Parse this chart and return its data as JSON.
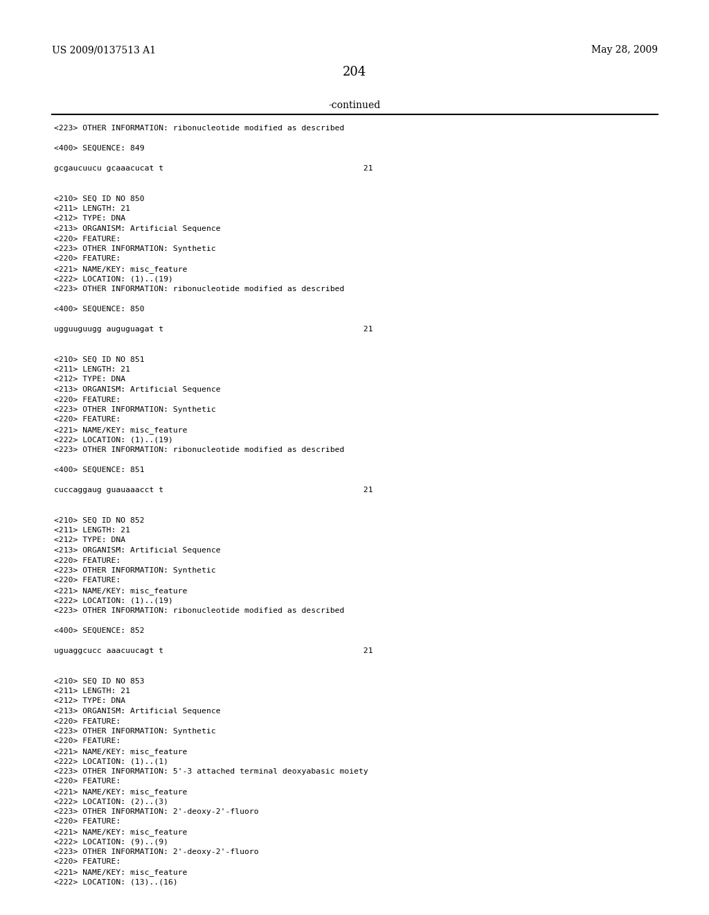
{
  "header_left": "US 2009/0137513 A1",
  "header_right": "May 28, 2009",
  "page_number": "204",
  "continued_text": "-continued",
  "background_color": "#ffffff",
  "text_color": "#000000",
  "content_lines": [
    "<223> OTHER INFORMATION: ribonucleotide modified as described",
    "",
    "<400> SEQUENCE: 849",
    "",
    "gcgaucuucu gcaaacucat t                                          21",
    "",
    "",
    "<210> SEQ ID NO 850",
    "<211> LENGTH: 21",
    "<212> TYPE: DNA",
    "<213> ORGANISM: Artificial Sequence",
    "<220> FEATURE:",
    "<223> OTHER INFORMATION: Synthetic",
    "<220> FEATURE:",
    "<221> NAME/KEY: misc_feature",
    "<222> LOCATION: (1)..(19)",
    "<223> OTHER INFORMATION: ribonucleotide modified as described",
    "",
    "<400> SEQUENCE: 850",
    "",
    "ugguuguugg auguguagat t                                          21",
    "",
    "",
    "<210> SEQ ID NO 851",
    "<211> LENGTH: 21",
    "<212> TYPE: DNA",
    "<213> ORGANISM: Artificial Sequence",
    "<220> FEATURE:",
    "<223> OTHER INFORMATION: Synthetic",
    "<220> FEATURE:",
    "<221> NAME/KEY: misc_feature",
    "<222> LOCATION: (1)..(19)",
    "<223> OTHER INFORMATION: ribonucleotide modified as described",
    "",
    "<400> SEQUENCE: 851",
    "",
    "cuccaggaug guauaaacct t                                          21",
    "",
    "",
    "<210> SEQ ID NO 852",
    "<211> LENGTH: 21",
    "<212> TYPE: DNA",
    "<213> ORGANISM: Artificial Sequence",
    "<220> FEATURE:",
    "<223> OTHER INFORMATION: Synthetic",
    "<220> FEATURE:",
    "<221> NAME/KEY: misc_feature",
    "<222> LOCATION: (1)..(19)",
    "<223> OTHER INFORMATION: ribonucleotide modified as described",
    "",
    "<400> SEQUENCE: 852",
    "",
    "uguaggcucc aaacuucagt t                                          21",
    "",
    "",
    "<210> SEQ ID NO 853",
    "<211> LENGTH: 21",
    "<212> TYPE: DNA",
    "<213> ORGANISM: Artificial Sequence",
    "<220> FEATURE:",
    "<223> OTHER INFORMATION: Synthetic",
    "<220> FEATURE:",
    "<221> NAME/KEY: misc_feature",
    "<222> LOCATION: (1)..(1)",
    "<223> OTHER INFORMATION: 5'-3 attached terminal deoxyabasic moiety",
    "<220> FEATURE:",
    "<221> NAME/KEY: misc_feature",
    "<222> LOCATION: (2)..(3)",
    "<223> OTHER INFORMATION: 2'-deoxy-2'-fluoro",
    "<220> FEATURE:",
    "<221> NAME/KEY: misc_feature",
    "<222> LOCATION: (9)..(9)",
    "<223> OTHER INFORMATION: 2'-deoxy-2'-fluoro",
    "<220> FEATURE:",
    "<221> NAME/KEY: misc_feature",
    "<222> LOCATION: (13)..(16)"
  ]
}
